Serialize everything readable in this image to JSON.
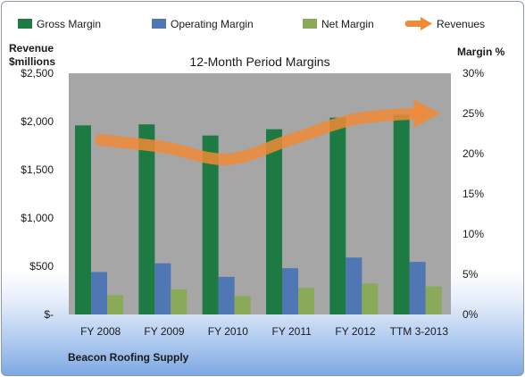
{
  "chart_data": {
    "type": "bar",
    "title": "12-Month Period Margins",
    "categories": [
      "FY 2008",
      "FY 2009",
      "FY 2010",
      "FY 2011",
      "FY 2012",
      "TTM 3-2013"
    ],
    "series": [
      {
        "name": "Gross Margin",
        "type": "bar",
        "axis": "left",
        "color": "#1e7a43",
        "values": [
          1960,
          1970,
          1855,
          1920,
          2040,
          2070
        ]
      },
      {
        "name": "Operating Margin",
        "type": "bar",
        "axis": "left",
        "color": "#4f77b3",
        "values": [
          440,
          530,
          390,
          480,
          590,
          545
        ]
      },
      {
        "name": "Net Margin",
        "type": "bar",
        "axis": "left",
        "color": "#8aaa59",
        "values": [
          200,
          260,
          190,
          275,
          320,
          290
        ]
      },
      {
        "name": "Revenues",
        "type": "line",
        "axis": "right",
        "color": "#f08a36",
        "values": [
          21.7,
          20.8,
          19.3,
          21.8,
          24.3,
          25.0
        ]
      }
    ],
    "left_axis": {
      "label": "Revenue $millions",
      "label_lines": [
        "Revenue",
        "$millions"
      ],
      "ylim": [
        0,
        2500
      ],
      "ticks": [
        0,
        500,
        1000,
        1500,
        2000,
        2500
      ],
      "tick_labels": [
        "$-",
        "$500",
        "$1,000",
        "$1,500",
        "$2,000",
        "$2,500"
      ]
    },
    "right_axis": {
      "label": "Margin %",
      "ylim": [
        0,
        30
      ],
      "ticks": [
        0,
        5,
        10,
        15,
        20,
        25,
        30
      ],
      "tick_labels": [
        "0%",
        "5%",
        "10%",
        "15%",
        "20%",
        "25%",
        "30%"
      ]
    },
    "legend_position": "top",
    "grid": false,
    "plot_background": "#a6a6a6",
    "footnote": "Beacon Roofing Supply"
  }
}
